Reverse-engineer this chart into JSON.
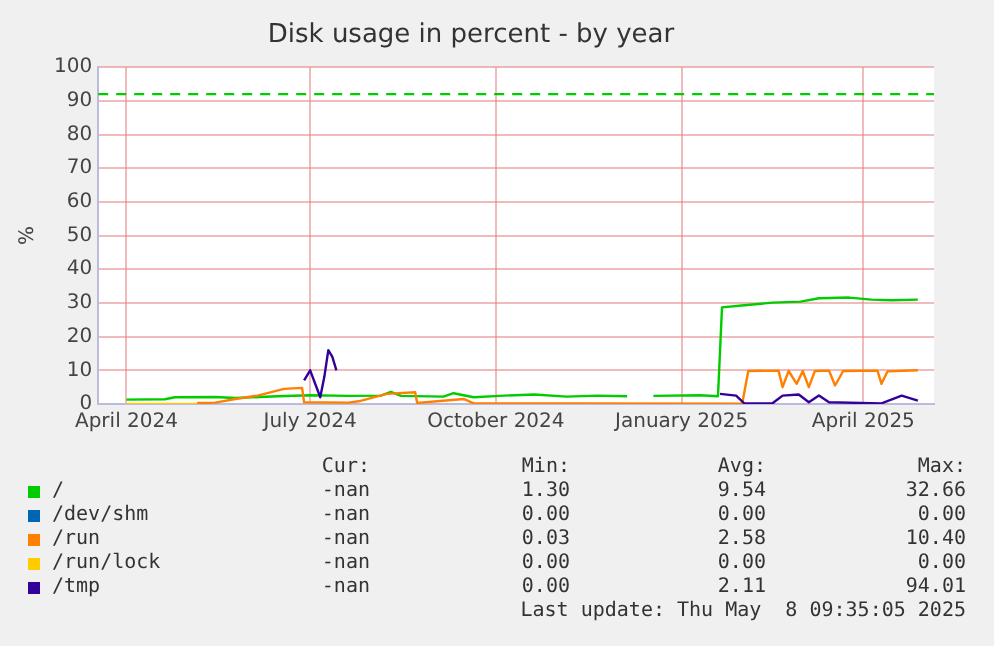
{
  "chart_data": {
    "type": "line",
    "title": "Disk usage in percent - by year",
    "ylabel": "%",
    "xlim": [
      "2024-03-18",
      "2025-05-06"
    ],
    "xticks": [
      {
        "value": "2024-04-01",
        "label": "April 2024"
      },
      {
        "value": "2024-07-01",
        "label": "July 2024"
      },
      {
        "value": "2024-10-01",
        "label": "October 2024"
      },
      {
        "value": "2025-01-01",
        "label": "January 2025"
      },
      {
        "value": "2025-04-01",
        "label": "April 2025"
      }
    ],
    "ylim": [
      0,
      100
    ],
    "yticks": [
      0,
      10,
      20,
      30,
      40,
      50,
      60,
      70,
      80,
      90,
      100
    ],
    "grid": true,
    "legend": "bottom",
    "marker": "none",
    "line_style": "solid",
    "ref_lines": [
      {
        "axis": "y",
        "value": 92,
        "color": "#00cc00",
        "line_style": "dashed"
      }
    ],
    "series": [
      {
        "name": "/",
        "color": "#00cc00",
        "x": [
          "2024-04-01",
          "2024-04-20",
          "2024-04-25",
          "2024-05-15",
          "2024-05-25",
          "2024-06-15",
          "2024-07-01",
          "2024-07-20",
          "2024-08-05",
          "2024-08-10",
          "2024-08-15",
          "2024-09-05",
          "2024-09-10",
          "2024-09-20",
          "2024-10-05",
          "2024-10-20",
          "2024-11-05",
          "2024-11-20",
          "2024-12-05",
          "2024-12-12",
          "2024-12-18",
          "2025-01-10",
          "2025-01-19",
          "2025-01-21",
          "2025-02-01",
          "2025-02-15",
          "2025-03-01",
          "2025-03-10",
          "2025-03-25",
          "2025-04-05",
          "2025-04-15",
          "2025-04-28"
        ],
        "values": [
          1.3,
          1.4,
          2.0,
          2.1,
          1.8,
          2.3,
          2.6,
          2.4,
          2.5,
          3.6,
          2.4,
          2.2,
          3.2,
          2.0,
          2.5,
          2.8,
          2.2,
          2.5,
          2.3,
          null,
          2.4,
          2.6,
          2.3,
          28.7,
          29.3,
          30.1,
          30.4,
          31.4,
          31.6,
          31.0,
          30.8,
          31.0
        ]
      },
      {
        "name": "/dev/shm",
        "color": "#0066b3"
      },
      {
        "name": "/run",
        "color": "#ff8000",
        "x": [
          "2024-05-06",
          "2024-05-15",
          "2024-05-25",
          "2024-06-05",
          "2024-06-18",
          "2024-06-27",
          "2024-06-28",
          "2024-07-20",
          "2024-07-25",
          "2024-08-08",
          "2024-08-22",
          "2024-08-23",
          "2024-09-15",
          "2024-09-20",
          "2024-10-15",
          "2024-11-10",
          "2025-01-31",
          "2025-02-03",
          "2025-02-18",
          "2025-02-20",
          "2025-02-23",
          "2025-02-27",
          "2025-03-02",
          "2025-03-05",
          "2025-03-08",
          "2025-03-15",
          "2025-03-18",
          "2025-03-22",
          "2025-04-08",
          "2025-04-10",
          "2025-04-13",
          "2025-04-28"
        ],
        "values": [
          0.3,
          0.4,
          1.5,
          2.5,
          4.5,
          4.8,
          0.5,
          0.4,
          0.8,
          3.0,
          3.5,
          0.3,
          1.5,
          0.2,
          0.2,
          0.2,
          0.1,
          9.8,
          9.9,
          5.0,
          9.8,
          6.0,
          9.8,
          5.0,
          9.8,
          9.9,
          5.5,
          9.8,
          9.9,
          6.0,
          9.7,
          10.0
        ]
      },
      {
        "name": "/run/lock",
        "color": "#ffcc00",
        "x": [
          "2024-04-01",
          "2024-05-06"
        ],
        "values": [
          0,
          0
        ]
      },
      {
        "name": "/tmp",
        "color": "#330099",
        "x": [
          "2024-06-28",
          "2024-07-01",
          "2024-07-06",
          "2024-07-08",
          "2024-07-10",
          "2024-07-12",
          "2024-07-14",
          "2024-07-20",
          "2025-01-20",
          "2025-01-28",
          "2025-02-01",
          "2025-02-15",
          "2025-02-20",
          "2025-02-28",
          "2025-03-05",
          "2025-03-10",
          "2025-03-15",
          "2025-04-10",
          "2025-04-20",
          "2025-04-28"
        ],
        "values": [
          7,
          10,
          2,
          8,
          16,
          14,
          10,
          null,
          3,
          2.5,
          0.2,
          0.2,
          2.5,
          2.8,
          0.5,
          2.5,
          0.5,
          0.2,
          2.5,
          1.0
        ]
      }
    ],
    "annotations": [
      "Cur:",
      "Min:",
      "Avg:",
      "Max:",
      "-nan",
      "1.30",
      "9.54",
      "32.66",
      "-nan",
      "0.00",
      "0.00",
      "0.00",
      "-nan",
      "0.03",
      "2.58",
      "10.40",
      "-nan",
      "0.00",
      "0.00",
      "0.00",
      "-nan",
      "0.00",
      "2.11",
      "94.01",
      "Last update: Thu May  8 09:35:05 2025"
    ]
  }
}
